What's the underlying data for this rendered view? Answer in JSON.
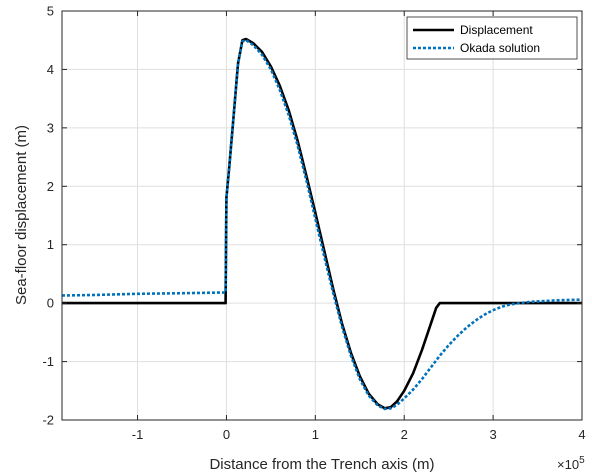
{
  "chart_data": {
    "type": "line",
    "xlabel": "Distance from the Trench axis (m)",
    "ylabel": "Sea-floor displacement (m)",
    "x_exponent_label": "×10",
    "x_exponent_power": "5",
    "x_scale": 100000,
    "xlim": [
      -185000,
      400000
    ],
    "ylim": [
      -2,
      5
    ],
    "xticks": [
      -1,
      0,
      1,
      2,
      3,
      4
    ],
    "yticks": [
      -2,
      -1,
      0,
      1,
      2,
      3,
      4,
      5
    ],
    "grid": true,
    "legend_position": "top-right",
    "series": [
      {
        "name": "Displacement",
        "color": "#000000",
        "style": "solid",
        "x": [
          -185000,
          -1000,
          0,
          3000,
          8000,
          13000,
          18000,
          22000,
          30000,
          40000,
          50000,
          60000,
          70000,
          80000,
          90000,
          100000,
          110000,
          120000,
          130000,
          140000,
          150000,
          160000,
          170000,
          178000,
          185000,
          192000,
          200000,
          210000,
          220000,
          230000,
          236000,
          240000,
          260000,
          300000,
          350000,
          400000
        ],
        "y": [
          0,
          0,
          1.8,
          2.3,
          3.2,
          4.1,
          4.5,
          4.52,
          4.45,
          4.3,
          4.05,
          3.72,
          3.3,
          2.78,
          2.18,
          1.55,
          0.9,
          0.25,
          -0.35,
          -0.85,
          -1.25,
          -1.55,
          -1.73,
          -1.8,
          -1.78,
          -1.68,
          -1.5,
          -1.2,
          -0.8,
          -0.35,
          -0.08,
          0,
          0,
          0,
          0,
          0
        ]
      },
      {
        "name": "Okada solution",
        "color": "#0072BD",
        "style": "dotted",
        "x": [
          -185000,
          -150000,
          -100000,
          -50000,
          -10000,
          -1000,
          0,
          3000,
          8000,
          13000,
          18000,
          22000,
          30000,
          40000,
          50000,
          60000,
          70000,
          80000,
          90000,
          100000,
          110000,
          120000,
          130000,
          140000,
          150000,
          160000,
          170000,
          178000,
          185000,
          192000,
          200000,
          210000,
          220000,
          230000,
          240000,
          250000,
          260000,
          270000,
          280000,
          290000,
          300000,
          310000,
          320000,
          330000,
          340000,
          350000,
          375000,
          400000
        ],
        "y": [
          0.13,
          0.14,
          0.16,
          0.17,
          0.18,
          0.18,
          1.8,
          2.3,
          3.2,
          4.1,
          4.48,
          4.5,
          4.42,
          4.25,
          4.0,
          3.65,
          3.22,
          2.7,
          2.1,
          1.45,
          0.8,
          0.18,
          -0.4,
          -0.9,
          -1.3,
          -1.58,
          -1.75,
          -1.81,
          -1.8,
          -1.74,
          -1.63,
          -1.48,
          -1.3,
          -1.1,
          -0.9,
          -0.72,
          -0.56,
          -0.42,
          -0.3,
          -0.2,
          -0.12,
          -0.06,
          -0.02,
          0.0,
          0.02,
          0.03,
          0.05,
          0.06
        ]
      }
    ]
  }
}
